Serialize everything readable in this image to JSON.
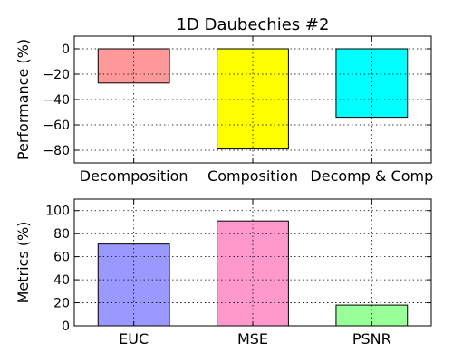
{
  "figure_title": "1D Daubechies #2",
  "chart_data": [
    {
      "type": "bar",
      "title": "1D Daubechies #2",
      "xlabel": "",
      "ylabel": "Performance (%)",
      "categories": [
        "Decomposition",
        "Composition",
        "Decomp & Comp"
      ],
      "values": [
        -27,
        -79,
        -54
      ],
      "colors": [
        "#ff9999",
        "#ffff00",
        "#00ffff"
      ],
      "ylim": [
        -90,
        10
      ],
      "yticks": [
        0,
        -20,
        -40,
        -60,
        -80
      ],
      "ytick_labels": [
        "0",
        "−20",
        "−40",
        "−60",
        "−80"
      ],
      "grid": true
    },
    {
      "type": "bar",
      "title": "",
      "xlabel": "",
      "ylabel": "Metrics (%)",
      "categories": [
        "EUC",
        "MSE",
        "PSNR"
      ],
      "values": [
        71,
        91,
        18
      ],
      "colors": [
        "#9999ff",
        "#ff99cc",
        "#99ff99"
      ],
      "ylim": [
        0,
        110
      ],
      "yticks": [
        0,
        20,
        40,
        60,
        80,
        100
      ],
      "ytick_labels": [
        "0",
        "20",
        "40",
        "60",
        "80",
        "100"
      ],
      "grid": true
    }
  ]
}
